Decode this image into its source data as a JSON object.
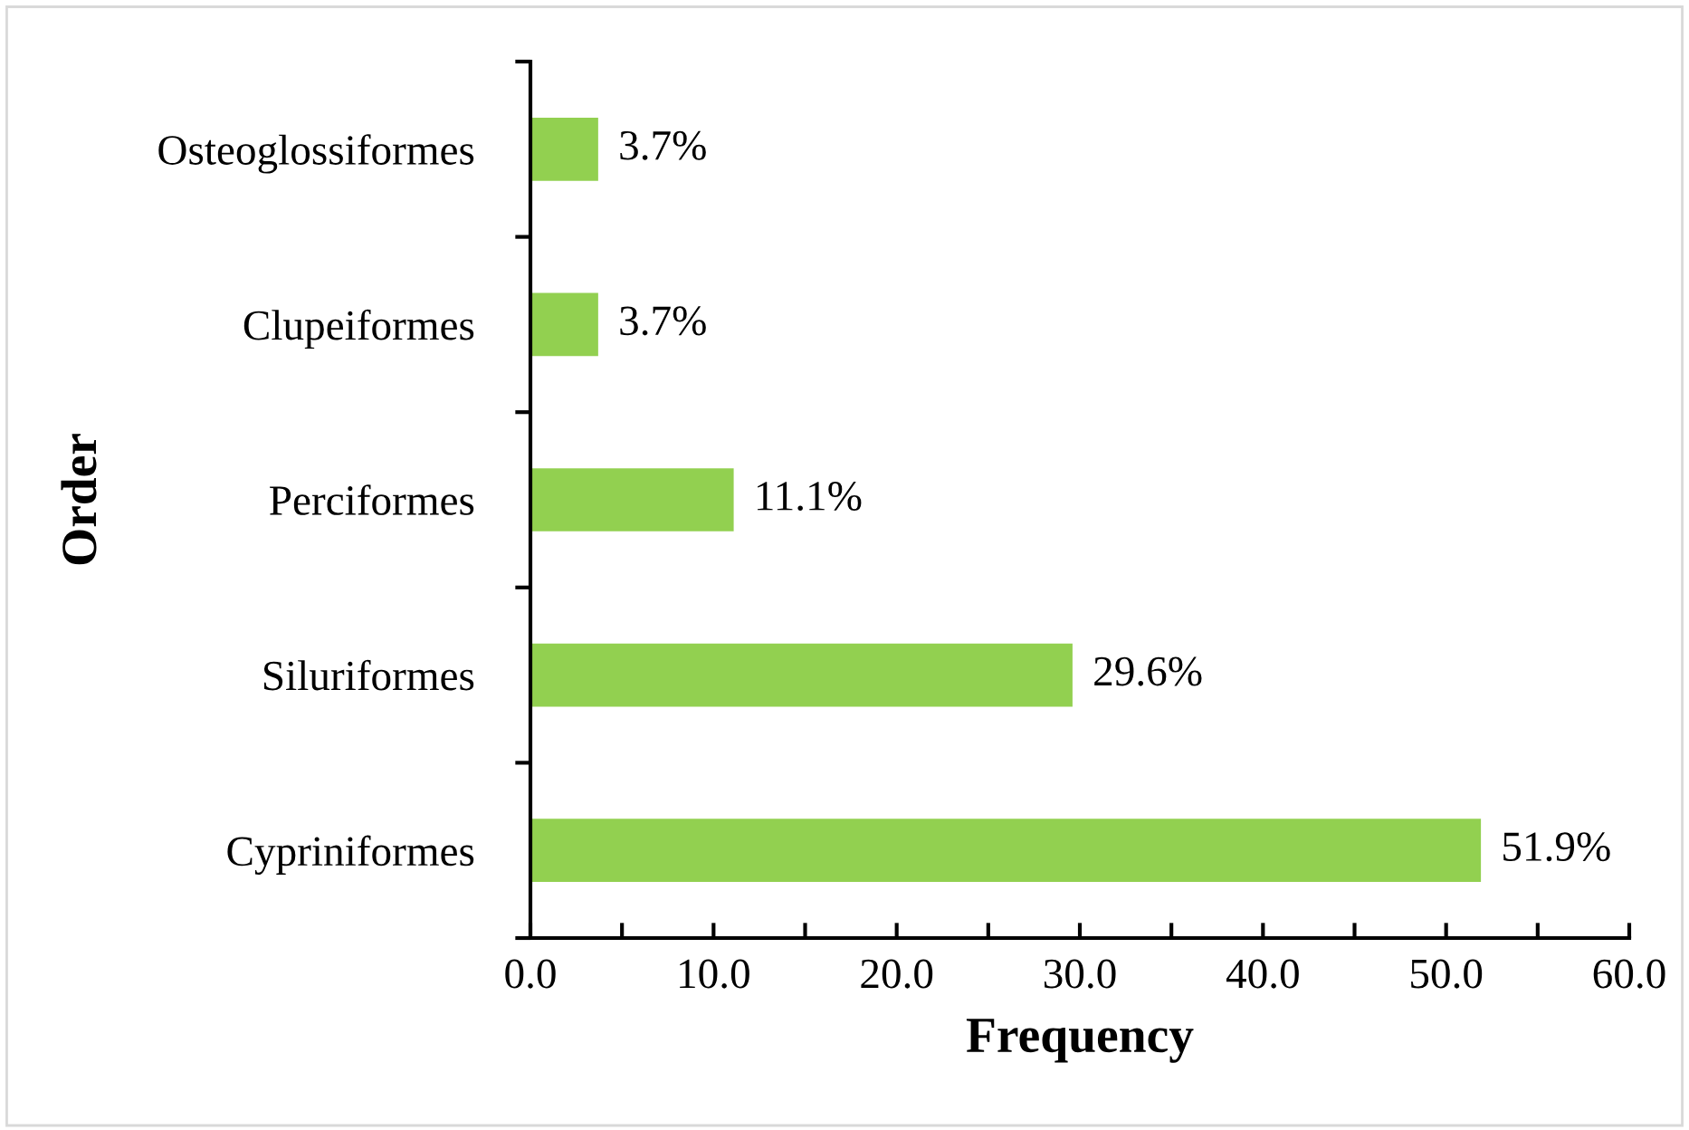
{
  "chart_data": {
    "type": "bar",
    "orientation": "horizontal",
    "xlabel": "Frequency",
    "ylabel": "Order",
    "categories": [
      "Osteoglossiformes",
      "Clupeiformes",
      "Perciformes",
      "Siluriformes",
      "Cypriniformes"
    ],
    "values": [
      3.7,
      3.7,
      11.1,
      29.6,
      51.9
    ],
    "value_labels": [
      "3.7%",
      "3.7%",
      "11.1%",
      "29.6%",
      "51.9%"
    ],
    "color": "#92d050",
    "xlim": [
      0,
      60
    ],
    "xticks": [
      {
        "value": 0,
        "label": "0.0"
      },
      {
        "value": 5,
        "label": null
      },
      {
        "value": 10,
        "label": "10.0"
      },
      {
        "value": 15,
        "label": null
      },
      {
        "value": 20,
        "label": "20.0"
      },
      {
        "value": 25,
        "label": null
      },
      {
        "value": 30,
        "label": "30.0"
      },
      {
        "value": 35,
        "label": null
      },
      {
        "value": 40,
        "label": "40.0"
      },
      {
        "value": 45,
        "label": null
      },
      {
        "value": 50,
        "label": "50.0"
      },
      {
        "value": 55,
        "label": null
      },
      {
        "value": 60,
        "label": "60.0"
      }
    ],
    "grid": false
  }
}
